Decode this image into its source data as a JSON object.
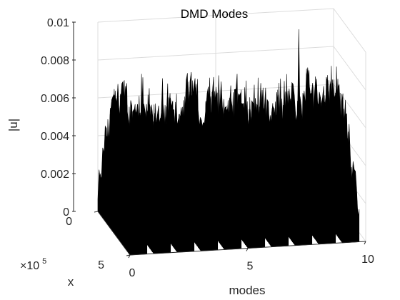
{
  "chart_data": {
    "type": "waterfall-3d",
    "title": "DMD Modes",
    "xlabel": "modes",
    "ylabel": "x",
    "zlabel": "|u|",
    "x_ticks": [
      "0",
      "5",
      "10"
    ],
    "y_ticks": [
      "0",
      "5"
    ],
    "y_multiplier": "×10",
    "y_multiplier_exponent": "5",
    "z_ticks": [
      "0",
      "0.002",
      "0.004",
      "0.006",
      "0.008",
      "0.01"
    ],
    "xlim": [
      0,
      10
    ],
    "ylim": [
      0,
      5
    ],
    "zlim": [
      0,
      0.01
    ],
    "mode_count": 10,
    "typical_peak_range": [
      0.006,
      0.0085
    ],
    "max_peak": 0.0093,
    "grid": true,
    "colors": {
      "fill": "#000000",
      "edge": "#000000",
      "background": "#ffffff",
      "grid": "#dcdcdc",
      "axis": "#262626"
    }
  }
}
